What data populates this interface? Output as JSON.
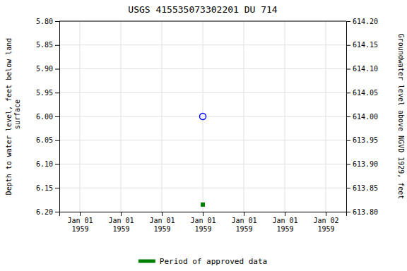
{
  "chart_data": {
    "type": "scatter",
    "title": "USGS 415535073302201 DU 714",
    "y_label": "Depth to water level, feet below land\n surface",
    "y2_label": "Groundwater level above NGVD 1929, feet",
    "categories": [
      "Jan 01\n1959",
      "Jan 01\n1959",
      "Jan 01\n1959",
      "Jan 01\n1959",
      "Jan 01\n1959",
      "Jan 01\n1959",
      "Jan 02\n1959"
    ],
    "series": [
      {
        "color": "blue",
        "marker": "circle-open",
        "values": [
          null,
          null,
          null,
          6.0,
          null,
          null,
          null
        ]
      },
      {
        "name": "Period of approved data",
        "color": "#008000",
        "marker": "square",
        "values": [
          null,
          null,
          null,
          6.185,
          null,
          null,
          null
        ]
      }
    ],
    "ylim": [
      6.2,
      5.8
    ],
    "yticks": [
      {
        "value": 5.8,
        "label": "5.80"
      },
      5.85,
      {
        "value": 5.9,
        "label": "5.90"
      },
      5.95,
      {
        "value": 6.0,
        "label": "6.00"
      },
      6.05,
      {
        "value": 6.1,
        "label": "6.10"
      },
      6.15,
      {
        "value": 6.2,
        "label": "6.20"
      }
    ],
    "y2lim": [
      613.8,
      614.2
    ],
    "y2ticks": [
      {
        "value": 613.8,
        "label": "613.80"
      },
      613.85,
      {
        "value": 613.9,
        "label": "613.90"
      },
      613.95,
      {
        "value": 614.0,
        "label": "614.00"
      },
      614.05,
      {
        "value": 614.1,
        "label": "614.10"
      },
      614.15,
      {
        "value": 614.2,
        "label": "614.20"
      }
    ],
    "grid": true,
    "legend": "bottom"
  }
}
